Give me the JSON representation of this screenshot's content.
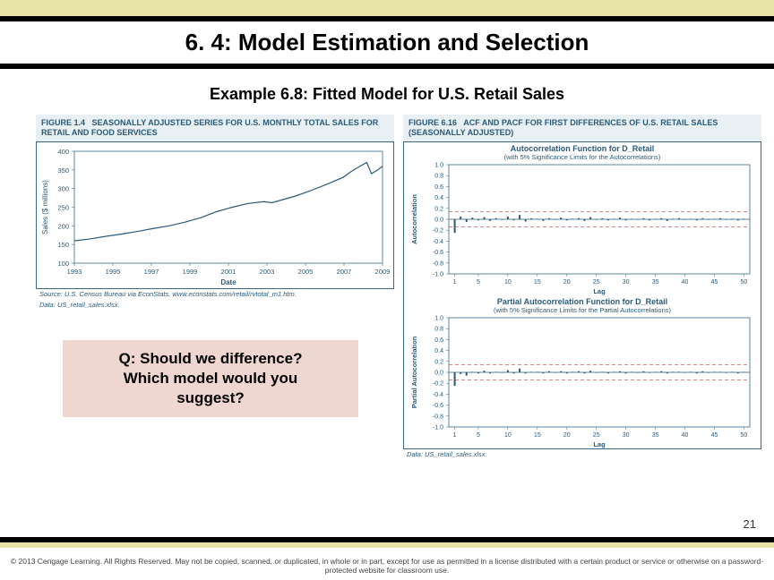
{
  "header": {
    "title": "6. 4: Model Estimation and Selection",
    "subtitle": "Example 6.8: Fitted Model for U.S. Retail Sales"
  },
  "figure_left": {
    "caption_label": "FIGURE 1.4",
    "caption_text": "SEASONALLY ADJUSTED SERIES FOR U.S. MONTHLY TOTAL SALES FOR RETAIL AND FOOD SERVICES",
    "type": "line",
    "ylabel": "Sales ($ millions)",
    "xlabel": "Date",
    "ylim": [
      100,
      400
    ],
    "yticks": [
      100,
      150,
      200,
      250,
      300,
      350,
      400
    ],
    "xticks": [
      "1993",
      "1995",
      "1997",
      "1999",
      "2001",
      "2003",
      "2005",
      "2007",
      "2009"
    ],
    "line_color": "#2a5a7a",
    "grid_color": "#d8e2e8",
    "background_color": "#ffffff",
    "border_color": "#3a6a8a",
    "points": [
      [
        0,
        160
      ],
      [
        10,
        165
      ],
      [
        20,
        172
      ],
      [
        30,
        178
      ],
      [
        40,
        185
      ],
      [
        50,
        193
      ],
      [
        60,
        200
      ],
      [
        70,
        210
      ],
      [
        80,
        222
      ],
      [
        90,
        238
      ],
      [
        100,
        250
      ],
      [
        110,
        260
      ],
      [
        120,
        265
      ],
      [
        125,
        262
      ],
      [
        130,
        268
      ],
      [
        140,
        280
      ],
      [
        150,
        295
      ],
      [
        160,
        312
      ],
      [
        170,
        330
      ],
      [
        175,
        345
      ],
      [
        180,
        358
      ],
      [
        185,
        370
      ],
      [
        188,
        340
      ],
      [
        192,
        350
      ],
      [
        195,
        360
      ]
    ],
    "source": "Source: U.S. Census Bureau via EconStats, www.econstats.com/retail/rvtotal_m1.htm.",
    "data_note": "Data: US_retail_sales.xlsx."
  },
  "figure_right": {
    "caption_label": "FIGURE 6.16",
    "caption_text": "ACF AND PACF FOR FIRST DIFFERENCES OF U.S. RETAIL SALES (SEASONALLY ADJUSTED)",
    "acf": {
      "title": "Autocorrelation Function for D_Retail",
      "sub": "(with 5% Significance Limits for the Autocorrelations)",
      "ylabel": "Autocorrelation",
      "xlabel": "Lag",
      "ylim": [
        -1.0,
        1.0
      ],
      "yticks": [
        -1.0,
        -0.8,
        -0.6,
        -0.4,
        -0.2,
        0.0,
        0.2,
        0.4,
        0.6,
        0.8,
        1.0
      ],
      "xticks": [
        1,
        5,
        10,
        15,
        20,
        25,
        30,
        35,
        40,
        45,
        50
      ],
      "sig_limit": 0.14,
      "bar_color": "#2a5a7a",
      "sig_color": "#c04040",
      "values": [
        -0.25,
        0.05,
        -0.05,
        0.03,
        -0.02,
        0.04,
        -0.03,
        0.02,
        -0.01,
        0.05,
        -0.02,
        0.08,
        -0.04,
        0.02,
        0.01,
        -0.03,
        0.02,
        -0.01,
        0.03,
        -0.02,
        0.01,
        0.02,
        -0.03,
        0.04,
        -0.01,
        0.02,
        -0.02,
        0.01,
        0.03,
        -0.02,
        0.01,
        -0.01,
        0.02,
        -0.02,
        0.01,
        0.02,
        -0.03,
        0.01,
        0.02,
        -0.01,
        0.01,
        -0.02,
        0.02,
        -0.01,
        0.01,
        0.02,
        -0.01,
        0.01,
        -0.02,
        0.01
      ]
    },
    "pacf": {
      "title": "Partial Autocorrelation Function for D_Retail",
      "sub": "(with 5% Significance Limits for the Partial Autocorrelations)",
      "ylabel": "Partial Autocorrelation",
      "xlabel": "Lag",
      "ylim": [
        -1.0,
        1.0
      ],
      "yticks": [
        -1.0,
        -0.8,
        -0.6,
        -0.4,
        -0.2,
        0.0,
        0.2,
        0.4,
        0.6,
        0.8,
        1.0
      ],
      "xticks": [
        1,
        5,
        10,
        15,
        20,
        25,
        30,
        35,
        40,
        45,
        50
      ],
      "sig_limit": 0.14,
      "bar_color": "#2a5a7a",
      "sig_color": "#c04040",
      "values": [
        -0.25,
        -0.03,
        -0.06,
        0.01,
        -0.02,
        0.03,
        -0.02,
        0.01,
        -0.01,
        0.04,
        -0.02,
        0.07,
        -0.02,
        0.01,
        0.01,
        -0.02,
        0.02,
        -0.01,
        0.02,
        -0.02,
        0.01,
        0.02,
        -0.02,
        0.03,
        -0.01,
        0.01,
        -0.02,
        0.01,
        0.02,
        -0.02,
        0.01,
        -0.01,
        0.02,
        -0.01,
        0.01,
        0.02,
        -0.02,
        0.01,
        0.01,
        -0.01,
        0.01,
        -0.02,
        0.02,
        -0.01,
        0.01,
        0.01,
        -0.01,
        0.01,
        -0.02,
        0.01
      ]
    },
    "data_note": "Data: US_retail_sales.xlsx."
  },
  "question": {
    "line1": "Q: Should we difference?",
    "line2": "Which model would you",
    "line3": "suggest?"
  },
  "footer": {
    "page": "21",
    "copyright": "© 2013 Cengage Learning. All Rights Reserved. May not be copied, scanned, or duplicated, in whole or in part, except for use as permitted in a license distributed with a certain product or service or otherwise on a password-protected website for classroom use."
  },
  "colors": {
    "yellow_band": "#e8e4a8",
    "black": "#000000",
    "question_bg": "#f0d6d0",
    "fig_caption_bg": "#e8f0f4",
    "fig_text": "#2a5a7a"
  }
}
